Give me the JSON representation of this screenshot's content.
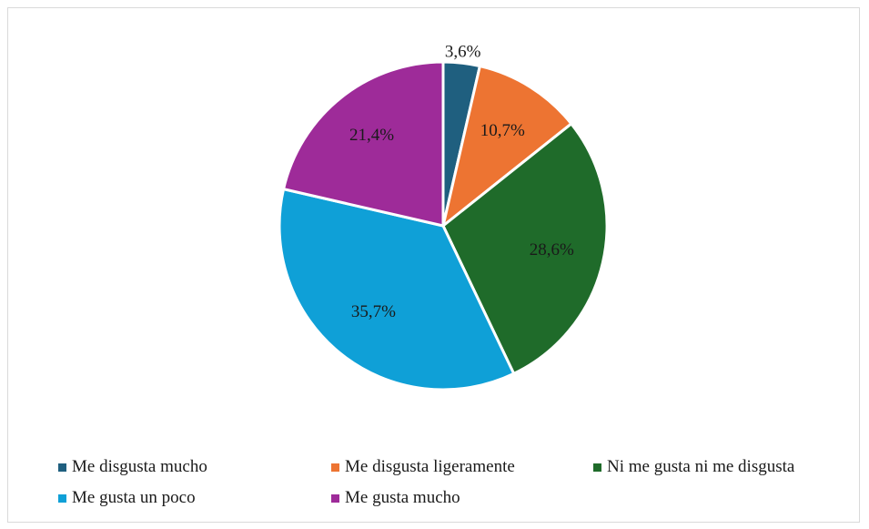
{
  "chart_data": {
    "type": "pie",
    "categories": [
      "Me disgusta mucho",
      "Me disgusta ligeramente",
      "Ni me gusta ni me disgusta",
      "Me gusta un poco",
      "Me gusta mucho"
    ],
    "values": [
      3.6,
      10.7,
      28.6,
      35.7,
      21.4
    ],
    "labels": [
      "3,6%",
      "10,7%",
      "28,6%",
      "35,7%",
      "21,4%"
    ],
    "colors": [
      "#1f5f7f",
      "#ed7432",
      "#1f6b2a",
      "#0fa0d7",
      "#9e2b99"
    ],
    "start_angle": "12 o'clock",
    "direction": "clockwise",
    "legend_position": "bottom"
  }
}
